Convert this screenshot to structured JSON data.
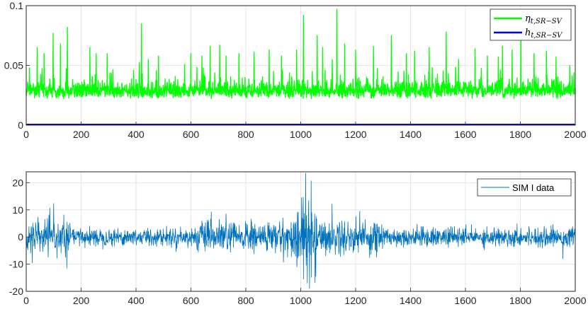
{
  "chart_data": [
    {
      "type": "line",
      "title": "",
      "xlabel": "",
      "ylabel": "",
      "xlim": [
        0,
        2000
      ],
      "ylim": [
        0,
        0.1
      ],
      "xticks": [
        "0",
        "200",
        "400",
        "600",
        "800",
        "1000",
        "1200",
        "1400",
        "1600",
        "1800",
        "2000"
      ],
      "yticks": [
        "0",
        "0.05",
        "0.1"
      ],
      "grid": true,
      "legend_position": "top-right",
      "series": [
        {
          "name": "η_{t,SR−SV}",
          "color": "#00ff00",
          "description_values": {
            "n": 2001,
            "baseline": 0.026,
            "noise_range": [
              0.019,
              0.04
            ],
            "peaks": [
              {
                "x": 12,
                "y": 0.048
              },
              {
                "x": 40,
                "y": 0.065
              },
              {
                "x": 65,
                "y": 0.06
              },
              {
                "x": 98,
                "y": 0.077
              },
              {
                "x": 125,
                "y": 0.068
              },
              {
                "x": 150,
                "y": 0.082
              },
              {
                "x": 232,
                "y": 0.065
              },
              {
                "x": 255,
                "y": 0.06
              },
              {
                "x": 295,
                "y": 0.06
              },
              {
                "x": 420,
                "y": 0.085
              },
              {
                "x": 445,
                "y": 0.055
              },
              {
                "x": 482,
                "y": 0.058
              },
              {
                "x": 600,
                "y": 0.06
              },
              {
                "x": 640,
                "y": 0.058
              },
              {
                "x": 670,
                "y": 0.066
              },
              {
                "x": 705,
                "y": 0.067
              },
              {
                "x": 728,
                "y": 0.058
              },
              {
                "x": 775,
                "y": 0.06
              },
              {
                "x": 830,
                "y": 0.061
              },
              {
                "x": 885,
                "y": 0.063
              },
              {
                "x": 930,
                "y": 0.058
              },
              {
                "x": 985,
                "y": 0.063
              },
              {
                "x": 1010,
                "y": 0.092
              },
              {
                "x": 1060,
                "y": 0.075
              },
              {
                "x": 1080,
                "y": 0.065
              },
              {
                "x": 1115,
                "y": 0.055
              },
              {
                "x": 1132,
                "y": 0.097
              },
              {
                "x": 1160,
                "y": 0.068
              },
              {
                "x": 1200,
                "y": 0.063
              },
              {
                "x": 1265,
                "y": 0.066
              },
              {
                "x": 1330,
                "y": 0.075
              },
              {
                "x": 1385,
                "y": 0.06
              },
              {
                "x": 1415,
                "y": 0.062
              },
              {
                "x": 1468,
                "y": 0.065
              },
              {
                "x": 1530,
                "y": 0.078
              },
              {
                "x": 1575,
                "y": 0.055
              },
              {
                "x": 1635,
                "y": 0.064
              },
              {
                "x": 1680,
                "y": 0.058
              },
              {
                "x": 1720,
                "y": 0.057
              },
              {
                "x": 1735,
                "y": 0.066
              },
              {
                "x": 1770,
                "y": 0.063
              },
              {
                "x": 1802,
                "y": 0.078
              },
              {
                "x": 1850,
                "y": 0.06
              },
              {
                "x": 1895,
                "y": 0.062
              },
              {
                "x": 1930,
                "y": 0.057
              },
              {
                "x": 1980,
                "y": 0.05
              }
            ]
          }
        },
        {
          "name": "h_{t,SR−SV}",
          "color": "#0000ff",
          "x": [
            0,
            2000
          ],
          "values": [
            0.0005,
            0.0005
          ]
        }
      ]
    },
    {
      "type": "line",
      "title": "",
      "xlabel": "",
      "ylabel": "",
      "xlim": [
        0,
        2000
      ],
      "ylim": [
        -20,
        24
      ],
      "xticks": [
        "0",
        "200",
        "400",
        "600",
        "800",
        "1000",
        "1200",
        "1400",
        "1600",
        "1800",
        "2000"
      ],
      "yticks": [
        "-20",
        "-10",
        "0",
        "10",
        "20"
      ],
      "grid": true,
      "legend_position": "top-right",
      "series": [
        {
          "name": "SIM I data",
          "color": "#0072bd",
          "description_values": {
            "n": 2001,
            "mean": 0,
            "volatility_regimes": [
              {
                "x_range": [
                  0,
                  170
                ],
                "std": 2.8
              },
              {
                "x_range": [
                  170,
                  620
                ],
                "std": 1.6
              },
              {
                "x_range": [
                  620,
                  880
                ],
                "std": 2.8
              },
              {
                "x_range": [
                  880,
                  980
                ],
                "std": 3.0
              },
              {
                "x_range": [
                  980,
                  1060
                ],
                "std": 6.5
              },
              {
                "x_range": [
                  1060,
                  1300
                ],
                "std": 3.2
              },
              {
                "x_range": [
                  1300,
                  2000
                ],
                "std": 1.7
              }
            ],
            "extremes": [
              {
                "x": 22,
                "y": -9.5
              },
              {
                "x": 100,
                "y": 12.3
              },
              {
                "x": 148,
                "y": -11.5
              },
              {
                "x": 728,
                "y": 8.5
              },
              {
                "x": 1003,
                "y": 14.5
              },
              {
                "x": 1010,
                "y": -15.5
              },
              {
                "x": 1018,
                "y": 23.5
              },
              {
                "x": 1024,
                "y": -17.0
              },
              {
                "x": 1032,
                "y": -19.0
              },
              {
                "x": 1040,
                "y": 9.0
              },
              {
                "x": 1215,
                "y": 9.5
              },
              {
                "x": 1955,
                "y": -8.0
              }
            ]
          }
        }
      ]
    }
  ],
  "legends": {
    "top": [
      {
        "symbol": "η",
        "sub": "t,SR−SV"
      },
      {
        "symbol": "h",
        "sub": "t,SR−SV"
      }
    ],
    "bottom": [
      {
        "label": "SIM I data"
      }
    ]
  }
}
